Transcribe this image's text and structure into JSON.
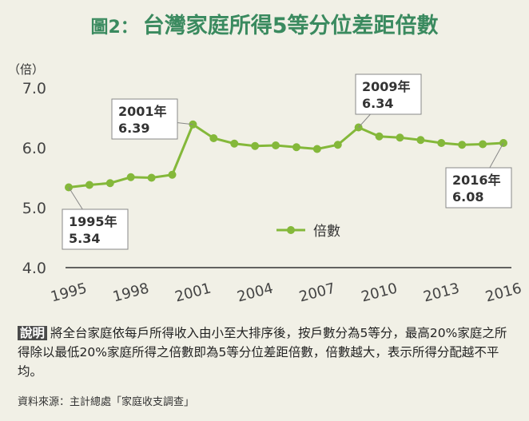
{
  "title": {
    "label": "圖2：",
    "main": "台灣家庭所得5等分位差距倍數"
  },
  "chart_data": {
    "type": "line",
    "ylabel": "（倍）",
    "ylim": [
      4.0,
      7.0
    ],
    "yticks": [
      "4.0",
      "5.0",
      "6.0",
      "7.0"
    ],
    "x": [
      1995,
      1996,
      1997,
      1998,
      1999,
      2000,
      2001,
      2002,
      2003,
      2004,
      2005,
      2006,
      2007,
      2008,
      2009,
      2010,
      2011,
      2012,
      2013,
      2014,
      2015,
      2016
    ],
    "xticks": [
      "1995",
      "1998",
      "2001",
      "2004",
      "2007",
      "2010",
      "2013",
      "2016"
    ],
    "series": [
      {
        "name": "倍數",
        "color": "#84b83a",
        "values": [
          5.34,
          5.38,
          5.41,
          5.51,
          5.5,
          5.55,
          6.39,
          6.16,
          6.07,
          6.03,
          6.04,
          6.01,
          5.98,
          6.05,
          6.34,
          6.19,
          6.17,
          6.13,
          6.08,
          6.05,
          6.06,
          6.08
        ]
      }
    ],
    "annotations": [
      {
        "year": "1995年",
        "value": "5.34"
      },
      {
        "year": "2001年",
        "value": "6.39"
      },
      {
        "year": "2009年",
        "value": "6.34"
      },
      {
        "year": "2016年",
        "value": "6.08"
      }
    ]
  },
  "description": {
    "tag": "說明",
    "text": "將全台家庭依每戶所得收入由小至大排序後，按戶數分為5等分，最高20%家庭之所得除以最低20%家庭所得之倍數即為5等分位差距倍數，倍數越大，表示所得分配越不平均。"
  },
  "source": "資料來源：主計總處「家庭收支調查」"
}
